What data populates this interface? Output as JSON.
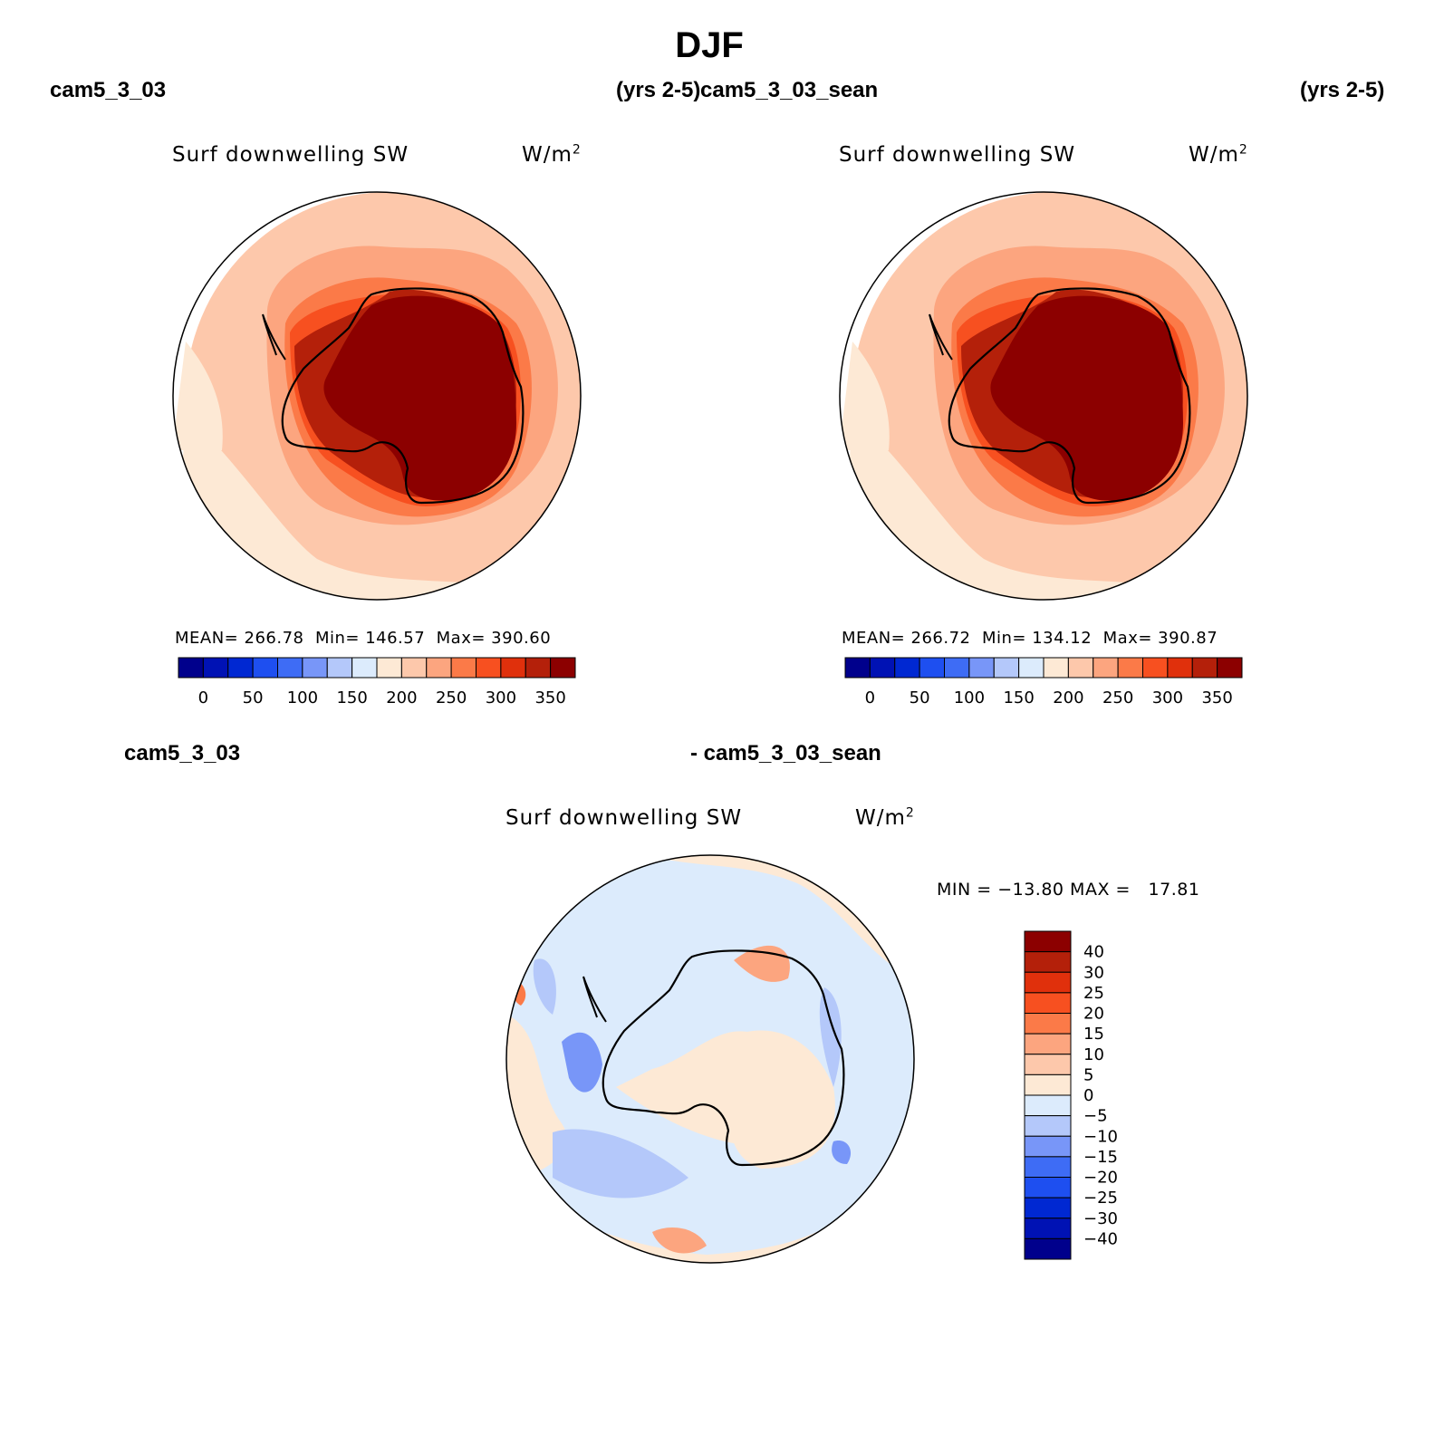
{
  "figure": {
    "title": "DJF"
  },
  "panels": [
    {
      "case_left": "cam5_3_03",
      "case_right": "(yrs 2-5)",
      "variable": "Surf downwelling SW",
      "units_base": "W/m",
      "units_exp": "2",
      "stats": {
        "mean_label": "MEAN=",
        "mean": "266.78",
        "min_label": "Min=",
        "min": "146.57",
        "max_label": "Max=",
        "max": "390.60"
      }
    },
    {
      "case_left": "cam5_3_03_sean",
      "case_right": "(yrs 2-5)",
      "variable": "Surf downwelling SW",
      "units_base": "W/m",
      "units_exp": "2",
      "stats": {
        "mean_label": "MEAN=",
        "mean": "266.72",
        "min_label": "Min=",
        "min": "134.12",
        "max_label": "Max=",
        "max": "390.87"
      }
    }
  ],
  "diff_panel": {
    "case_left": "cam5_3_03",
    "case_right": "- cam5_3_03_sean",
    "variable": "Surf downwelling SW",
    "units_base": "W/m",
    "units_exp": "2",
    "stats_text": "MIN = −13.80 MAX =   17.81"
  },
  "abs_colorbar": {
    "colors": [
      "#00008c",
      "#0012b4",
      "#0028d2",
      "#1e4ff0",
      "#3e6cf5",
      "#7896f8",
      "#b4c8fa",
      "#dcebfc",
      "#fde9d5",
      "#fdc8ab",
      "#fca57f",
      "#fb7a48",
      "#f75020",
      "#e0300c",
      "#b4200a",
      "#8c0000"
    ],
    "labels": [
      "0",
      "50",
      "100",
      "150",
      "200",
      "250",
      "300",
      "350"
    ]
  },
  "diff_colorbar": {
    "colors": [
      "#8c0000",
      "#b4200a",
      "#e0300c",
      "#f75020",
      "#fb7a48",
      "#fca57f",
      "#fdc8ab",
      "#fde9d5",
      "#dcebfc",
      "#b4c8fa",
      "#7896f8",
      "#3e6cf5",
      "#1e4ff0",
      "#0028d2",
      "#0012b4",
      "#00008c"
    ],
    "labels": [
      "40",
      "30",
      "25",
      "20",
      "15",
      "10",
      "5",
      "0",
      "−5",
      "−10",
      "−15",
      "−20",
      "−25",
      "−30",
      "−40"
    ]
  }
}
